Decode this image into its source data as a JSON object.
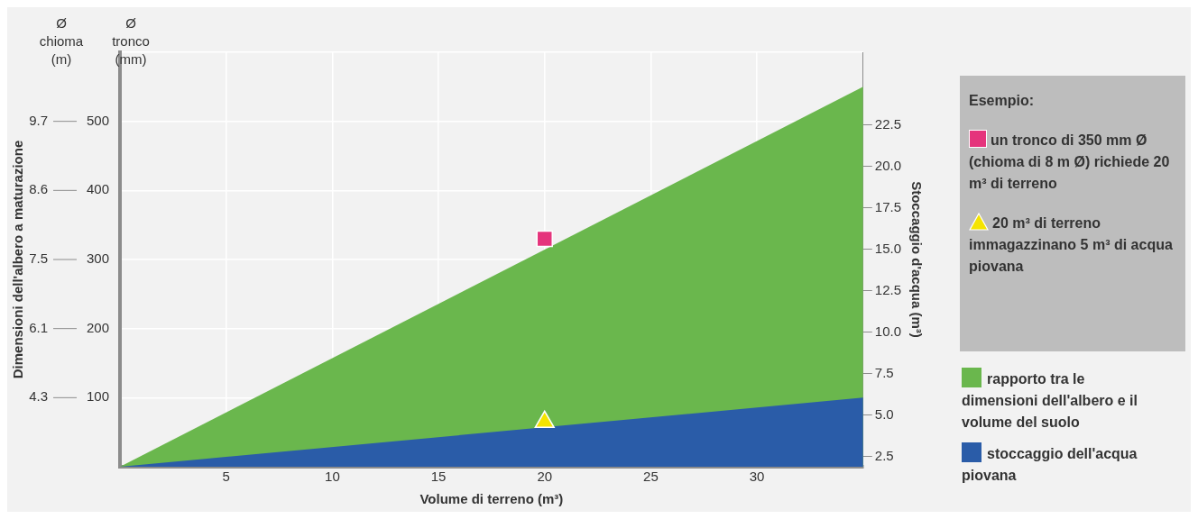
{
  "chart_data": {
    "type": "area",
    "xlabel": "Volume di terreno (m³)",
    "ylabel": "Dimensioni dell'albero a maturazione",
    "y2label": "Stoccaggio d'acqua (m³)",
    "annotations": [
      "Ø chioma (m)",
      "Ø tronco (mm)",
      "Esempio:",
      "un tronco di 350 mm Ø (chioma di 8 m Ø) richiede 20 m³ di terreno",
      "20 m³ di terreno immagazzinano 5 m³ di acqua piovana",
      "4.3",
      "6.1",
      "7.5",
      "8.6",
      "9.7"
    ],
    "x": [
      0,
      35
    ],
    "series": [
      {
        "name": "rapporto tra le dimensioni dell'albero e il volume del suolo",
        "color": "#6ab74d",
        "values": [
          0,
          550
        ]
      },
      {
        "name": "stoccaggio dell'acqua piovana",
        "color": "#2a5ca8",
        "values": [
          0,
          100
        ]
      },
      {
        "type": "scatter",
        "x": [
          20
        ],
        "color": "#e5347c",
        "marker": "square",
        "values": [
          330
        ]
      },
      {
        "type": "scatter",
        "x": [
          20
        ],
        "color": "#f5e400",
        "marker": "triangle",
        "axis": "y2",
        "values": [
          4.6
        ]
      }
    ],
    "xlim": [
      0,
      35
    ],
    "xticks": [
      5,
      10,
      15,
      20,
      25,
      30
    ],
    "ylim": [
      0,
      600
    ],
    "yticks": [
      100,
      200,
      300,
      400,
      500,
      {
        "value": 600,
        "label": null
      }
    ],
    "y2lim": [
      1.9,
      26.9
    ],
    "y2ticks": [
      2.5,
      {
        "value": 5,
        "label": "5.0"
      },
      7.5,
      {
        "value": 10,
        "label": "10.0"
      },
      12.5,
      {
        "value": 15,
        "label": "15.0"
      },
      17.5,
      {
        "value": 20,
        "label": "20.0"
      },
      22.5
    ],
    "grid": true,
    "legend": "right"
  }
}
